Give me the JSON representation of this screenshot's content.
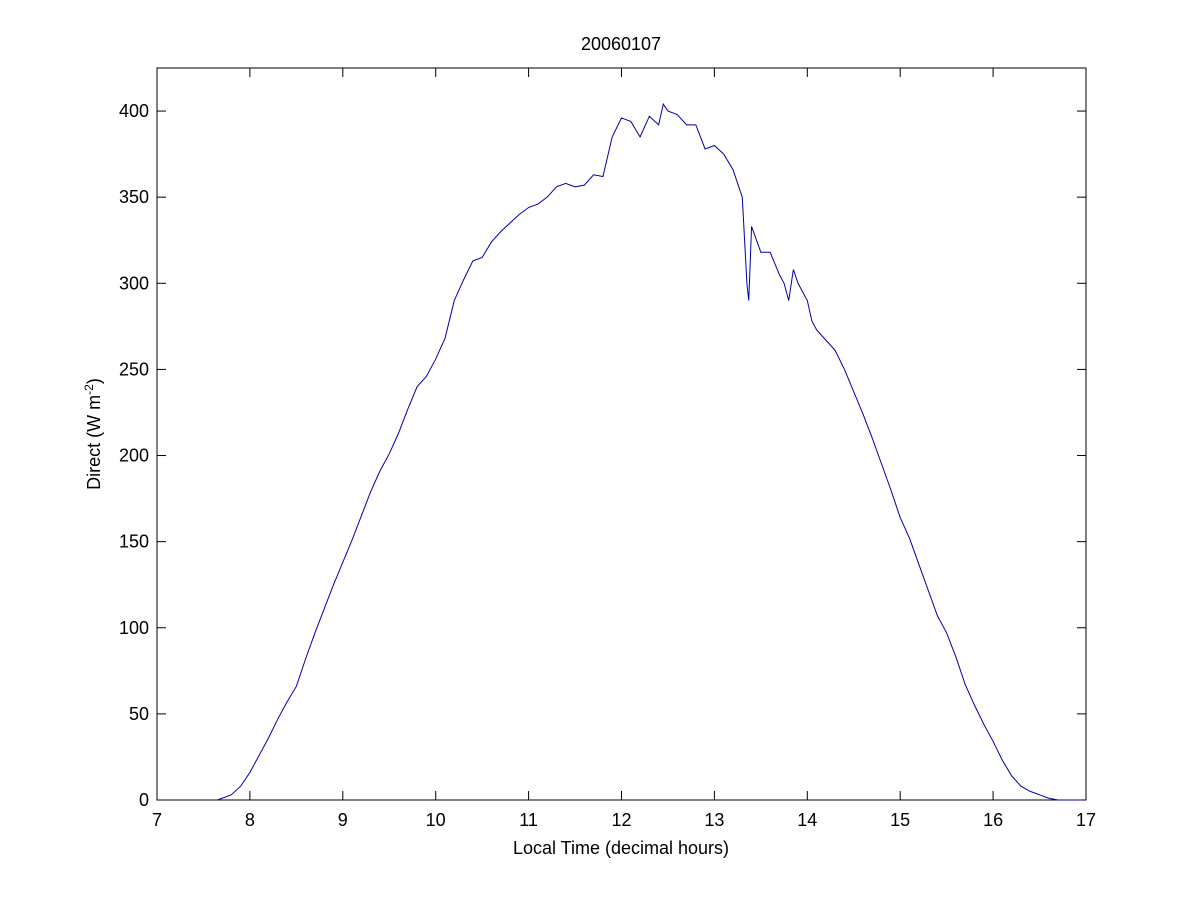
{
  "chart_data": {
    "type": "line",
    "title": "20060107",
    "x_label": "Local Time (decimal hours)",
    "y_label": "Direct (W m",
    "y_label_sup": "-2",
    "y_label_end": ")",
    "xlim": [
      7,
      17
    ],
    "xticks": [
      7,
      8,
      9,
      10,
      11,
      12,
      13,
      14,
      15,
      16,
      17
    ],
    "ylim": [
      0,
      425
    ],
    "yticks": [
      0,
      50,
      100,
      150,
      200,
      250,
      300,
      350,
      400
    ],
    "grid": false,
    "series": [
      {
        "color": "#0000aa",
        "x": [
          7.65,
          7.8,
          7.9,
          8.0,
          8.1,
          8.2,
          8.3,
          8.4,
          8.5,
          8.6,
          8.7,
          8.8,
          8.9,
          9.0,
          9.1,
          9.2,
          9.3,
          9.4,
          9.5,
          9.6,
          9.7,
          9.8,
          9.9,
          10.0,
          10.1,
          10.2,
          10.3,
          10.4,
          10.5,
          10.6,
          10.7,
          10.8,
          10.9,
          11.0,
          11.1,
          11.2,
          11.3,
          11.4,
          11.5,
          11.6,
          11.7,
          11.8,
          11.9,
          12.0,
          12.1,
          12.2,
          12.3,
          12.4,
          12.45,
          12.5,
          12.6,
          12.7,
          12.8,
          12.9,
          13.0,
          13.1,
          13.2,
          13.3,
          13.35,
          13.37,
          13.4,
          13.5,
          13.6,
          13.7,
          13.75,
          13.8,
          13.85,
          13.9,
          14.0,
          14.05,
          14.1,
          14.2,
          14.3,
          14.4,
          14.5,
          14.6,
          14.7,
          14.8,
          14.9,
          15.0,
          15.1,
          15.2,
          15.3,
          15.4,
          15.5,
          15.6,
          15.7,
          15.8,
          15.9,
          16.0,
          16.1,
          16.2,
          16.3,
          16.4,
          16.5,
          16.6,
          16.7,
          16.95
        ],
        "values": [
          0,
          3,
          8,
          16,
          26,
          36,
          47,
          57,
          66,
          82,
          97,
          111,
          125,
          138,
          151,
          165,
          179,
          191,
          201,
          213,
          227,
          240,
          246,
          256,
          268,
          290,
          302,
          313,
          315,
          324,
          330,
          335,
          340,
          344,
          346,
          350,
          356,
          358,
          356,
          357,
          363,
          362,
          385,
          396,
          394,
          385,
          397,
          392,
          404,
          400,
          398,
          392,
          392,
          378,
          380,
          375,
          366,
          350,
          300,
          290,
          333,
          318,
          318,
          305,
          300,
          290,
          308,
          300,
          290,
          278,
          273,
          267,
          261,
          250,
          237,
          224,
          210,
          195,
          180,
          164,
          152,
          137,
          122,
          107,
          97,
          83,
          67,
          55,
          44,
          34,
          23,
          14,
          8,
          5,
          3,
          1,
          0,
          0
        ]
      }
    ]
  }
}
